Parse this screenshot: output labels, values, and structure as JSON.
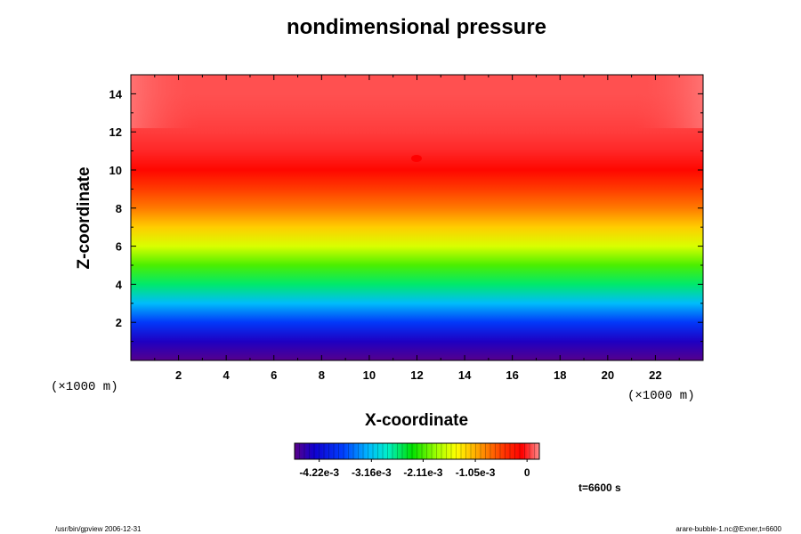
{
  "chart_data": {
    "type": "heatmap",
    "title": "nondimensional pressure",
    "xlabel": "X-coordinate",
    "ylabel": "Z-coordinate",
    "x_unit": "(×1000 m)",
    "y_unit": "(×1000 m)",
    "xlim": [
      0,
      24
    ],
    "ylim": [
      0,
      15
    ],
    "x_ticks": [
      "2",
      "4",
      "6",
      "8",
      "10",
      "12",
      "14",
      "16",
      "18",
      "20",
      "22"
    ],
    "y_ticks": [
      "2",
      "4",
      "6",
      "8",
      "10",
      "12",
      "14"
    ],
    "colorbar": {
      "range": [
        -0.00472,
        0.00025
      ],
      "tick_labels": [
        "-4.22e-3",
        "-3.16e-3",
        "-2.11e-3",
        "-1.05e-3",
        "0"
      ],
      "tick_values": [
        -0.00422,
        -0.00316,
        -0.00211,
        -0.00105,
        0
      ],
      "colormap": "rainbow (purple-blue-cyan-green-yellow-orange-red-pink)"
    },
    "field_profile_z_vs_value": [
      [
        0.0,
        -0.0047
      ],
      [
        1.0,
        -0.0044
      ],
      [
        2.0,
        -0.0038
      ],
      [
        3.0,
        -0.0032
      ],
      [
        4.0,
        -0.0026
      ],
      [
        5.0,
        -0.0021
      ],
      [
        6.0,
        -0.0016
      ],
      [
        7.0,
        -0.0012
      ],
      [
        8.0,
        -0.0008
      ],
      [
        9.0,
        -0.0005
      ],
      [
        10.0,
        -0.00015
      ],
      [
        11.0,
        0.0
      ],
      [
        12.0,
        5e-05
      ],
      [
        13.0,
        8e-05
      ],
      [
        14.0,
        0.0001
      ],
      [
        15.0,
        0.0001
      ]
    ],
    "grid": false
  },
  "annotations": {
    "time": "t=6600 s",
    "footer_left": "/usr/bin/gpview 2006-12-31",
    "footer_right": "arare-bubble-1.nc@Exner,t=6600"
  }
}
